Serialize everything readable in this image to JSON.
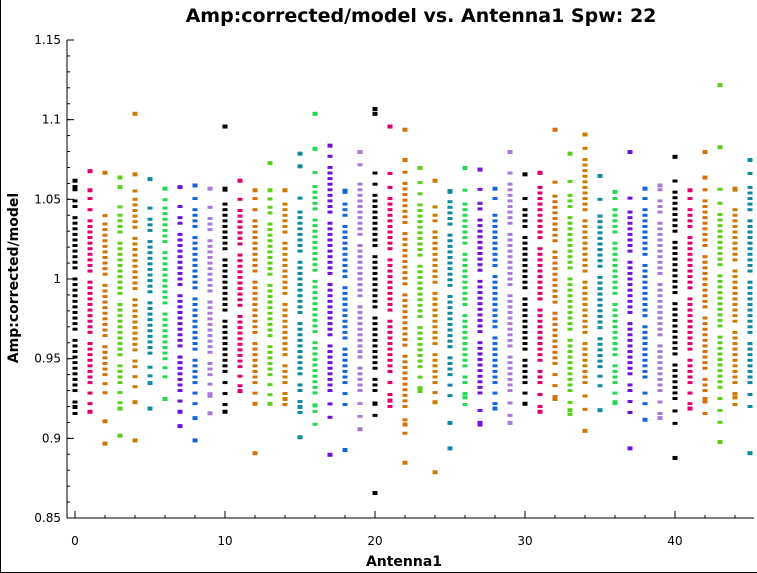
{
  "chart_data": {
    "type": "scatter",
    "title": "Amp:corrected/model vs. Antenna1 Spw: 22",
    "xlabel": "Antenna1",
    "ylabel": "Amp:corrected/model",
    "xlim": [
      0,
      45
    ],
    "ylim": [
      0.85,
      1.15
    ],
    "xticks": [
      0,
      10,
      20,
      30,
      40
    ],
    "xtick_labels": [
      "0",
      "10",
      "20",
      "30",
      "40"
    ],
    "yticks": [
      0.85,
      0.9,
      0.95,
      1.0,
      1.05,
      1.1,
      1.15
    ],
    "ytick_labels": [
      "0.85",
      "0.9",
      "0.95",
      "1",
      "1.05",
      "1.1",
      "1.15"
    ],
    "grid": false,
    "colors": [
      "#000000",
      "#e0006e",
      "#d4700a",
      "#5ad01a",
      "#cc7a00",
      "#0e8aa0",
      "#24d850",
      "#7010d8",
      "#1464dc",
      "#a87ad8"
    ],
    "antennas": [
      {
        "x": 0,
        "color": "#000000",
        "low": 0.93,
        "high": 1.05,
        "outliers": [
          0.92,
          1.062,
          1.058
        ]
      },
      {
        "x": 1,
        "color": "#e0006e",
        "low": 0.935,
        "high": 1.045,
        "outliers": [
          0.917,
          1.068,
          1.056
        ]
      },
      {
        "x": 2,
        "color": "#d4700a",
        "low": 0.94,
        "high": 1.035,
        "outliers": [
          0.897,
          0.911,
          1.067
        ]
      },
      {
        "x": 3,
        "color": "#5ad01a",
        "low": 0.935,
        "high": 1.04,
        "outliers": [
          0.902,
          0.919,
          1.064,
          1.058
        ]
      },
      {
        "x": 4,
        "color": "#cc7a00",
        "low": 0.945,
        "high": 1.05,
        "outliers": [
          0.899,
          0.923,
          1.104,
          1.066
        ]
      },
      {
        "x": 5,
        "color": "#0e8aa0",
        "low": 0.95,
        "high": 1.04,
        "outliers": [
          0.919,
          0.935,
          1.063
        ]
      },
      {
        "x": 6,
        "color": "#24d850",
        "low": 0.95,
        "high": 1.045,
        "outliers": [
          0.925,
          1.057
        ]
      },
      {
        "x": 7,
        "color": "#7010d8",
        "low": 0.93,
        "high": 1.04,
        "outliers": [
          0.908,
          0.917,
          1.058
        ]
      },
      {
        "x": 8,
        "color": "#1464dc",
        "low": 0.935,
        "high": 1.045,
        "outliers": [
          0.899,
          0.913,
          1.059
        ]
      },
      {
        "x": 9,
        "color": "#a87ad8",
        "low": 0.94,
        "high": 1.04,
        "outliers": [
          0.916,
          0.927,
          1.057
        ]
      },
      {
        "x": 10,
        "color": "#000000",
        "low": 0.935,
        "high": 1.05,
        "outliers": [
          0.917,
          1.096,
          1.057
        ]
      },
      {
        "x": 11,
        "color": "#e0006e",
        "low": 0.945,
        "high": 1.045,
        "outliers": [
          0.93,
          1.062
        ]
      },
      {
        "x": 12,
        "color": "#d4700a",
        "low": 0.935,
        "high": 1.045,
        "outliers": [
          0.891,
          0.922,
          1.056
        ]
      },
      {
        "x": 13,
        "color": "#5ad01a",
        "low": 0.94,
        "high": 1.045,
        "outliers": [
          0.922,
          1.073,
          1.056
        ]
      },
      {
        "x": 14,
        "color": "#cc7a00",
        "low": 0.935,
        "high": 1.05,
        "outliers": [
          0.925,
          1.056
        ]
      },
      {
        "x": 15,
        "color": "#0e8aa0",
        "low": 0.93,
        "high": 1.045,
        "outliers": [
          0.901,
          0.92,
          1.079,
          1.071
        ]
      },
      {
        "x": 16,
        "color": "#24d850",
        "low": 0.925,
        "high": 1.06,
        "outliers": [
          0.921,
          1.104,
          1.082
        ]
      },
      {
        "x": 17,
        "color": "#7010d8",
        "low": 0.93,
        "high": 1.07,
        "outliers": [
          0.89,
          1.084
        ]
      },
      {
        "x": 18,
        "color": "#1464dc",
        "low": 0.935,
        "high": 1.05,
        "outliers": [
          0.893,
          1.055
        ]
      },
      {
        "x": 19,
        "color": "#a87ad8",
        "low": 0.93,
        "high": 1.065,
        "outliers": [
          0.906,
          1.08
        ]
      },
      {
        "x": 20,
        "color": "#000000",
        "low": 0.93,
        "high": 1.06,
        "outliers": [
          0.866,
          0.922,
          1.107,
          1.104
        ]
      },
      {
        "x": 21,
        "color": "#e0006e",
        "low": 0.935,
        "high": 1.06,
        "outliers": [
          0.924,
          1.096
        ]
      },
      {
        "x": 22,
        "color": "#d4700a",
        "low": 0.92,
        "high": 1.06,
        "outliers": [
          0.885,
          0.909,
          1.094,
          1.075
        ]
      },
      {
        "x": 23,
        "color": "#5ad01a",
        "low": 0.945,
        "high": 1.055,
        "outliers": [
          0.93,
          1.07
        ]
      },
      {
        "x": 24,
        "color": "#cc7a00",
        "low": 0.935,
        "high": 1.04,
        "outliers": [
          0.879,
          0.923,
          1.062
        ]
      },
      {
        "x": 25,
        "color": "#0e8aa0",
        "low": 0.94,
        "high": 1.05,
        "outliers": [
          0.894,
          0.91,
          1.055
        ]
      },
      {
        "x": 26,
        "color": "#24d850",
        "low": 0.935,
        "high": 1.05,
        "outliers": [
          0.926,
          1.07
        ]
      },
      {
        "x": 27,
        "color": "#7010d8",
        "low": 0.925,
        "high": 1.05,
        "outliers": [
          0.909,
          1.069
        ]
      },
      {
        "x": 28,
        "color": "#1464dc",
        "low": 0.935,
        "high": 1.045,
        "outliers": [
          0.919,
          1.057
        ]
      },
      {
        "x": 29,
        "color": "#a87ad8",
        "low": 0.93,
        "high": 1.06,
        "outliers": [
          0.91,
          1.08
        ]
      },
      {
        "x": 30,
        "color": "#000000",
        "low": 0.935,
        "high": 1.045,
        "outliers": [
          0.922,
          1.066
        ]
      },
      {
        "x": 31,
        "color": "#e0006e",
        "low": 0.935,
        "high": 1.06,
        "outliers": [
          0.917,
          1.067
        ]
      },
      {
        "x": 32,
        "color": "#d4700a",
        "low": 0.94,
        "high": 1.055,
        "outliers": [
          0.925,
          1.094
        ]
      },
      {
        "x": 33,
        "color": "#5ad01a",
        "low": 0.93,
        "high": 1.055,
        "outliers": [
          0.918,
          1.079
        ]
      },
      {
        "x": 34,
        "color": "#cc7a00",
        "low": 0.935,
        "high": 1.075,
        "outliers": [
          0.905,
          1.091
        ]
      },
      {
        "x": 35,
        "color": "#0e8aa0",
        "low": 0.945,
        "high": 1.045,
        "outliers": [
          0.918,
          1.065
        ]
      },
      {
        "x": 36,
        "color": "#24d850",
        "low": 0.935,
        "high": 1.045,
        "outliers": [
          0.923,
          1.055
        ]
      },
      {
        "x": 37,
        "color": "#7010d8",
        "low": 0.93,
        "high": 1.045,
        "outliers": [
          0.894,
          1.08
        ]
      },
      {
        "x": 38,
        "color": "#1464dc",
        "low": 0.935,
        "high": 1.045,
        "outliers": [
          0.912,
          1.057
        ]
      },
      {
        "x": 39,
        "color": "#a87ad8",
        "low": 0.93,
        "high": 1.05,
        "outliers": [
          0.913,
          1.059
        ]
      },
      {
        "x": 40,
        "color": "#000000",
        "low": 0.925,
        "high": 1.055,
        "outliers": [
          0.888,
          1.077
        ]
      },
      {
        "x": 41,
        "color": "#e0006e",
        "low": 0.935,
        "high": 1.045,
        "outliers": [
          0.919,
          1.056
        ]
      },
      {
        "x": 42,
        "color": "#d4700a",
        "low": 0.93,
        "high": 1.05,
        "outliers": [
          0.925,
          1.08,
          1.064
        ]
      },
      {
        "x": 43,
        "color": "#5ad01a",
        "low": 0.925,
        "high": 1.05,
        "outliers": [
          0.898,
          1.122,
          1.083
        ]
      },
      {
        "x": 44,
        "color": "#cc7a00",
        "low": 0.935,
        "high": 1.05,
        "outliers": [
          0.926,
          1.057
        ]
      },
      {
        "x": 45,
        "color": "#0e8aa0",
        "low": 0.935,
        "high": 1.06,
        "outliers": [
          0.891,
          1.075
        ]
      }
    ]
  }
}
